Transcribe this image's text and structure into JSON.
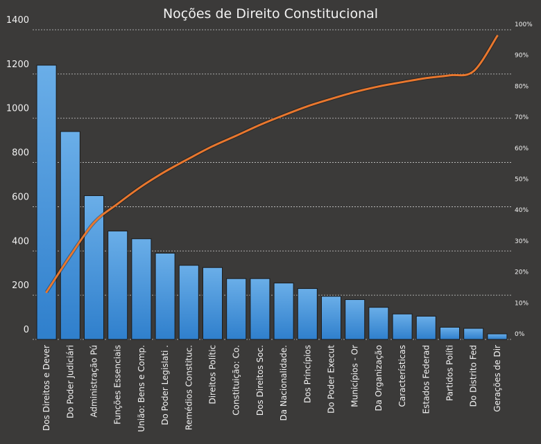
{
  "colors": {
    "background": "#3b3a39",
    "bar_fill_top": "#6aaee8",
    "bar_fill_bottom": "#2f7fcc",
    "bar_stroke": "#1b1b1b",
    "line": "#e8772e",
    "text": "#f2f2f2"
  },
  "chart_data": {
    "type": "bar",
    "title": "Noções de Direito Constitucional",
    "xlabel": "",
    "ylabel": "",
    "ylim": [
      0,
      1400
    ],
    "yticks": [
      "0",
      "200",
      "400",
      "600",
      "800",
      "1000",
      "1200",
      "1400"
    ],
    "y2lim": [
      0,
      100
    ],
    "y2ticks": [
      "0%",
      "10%",
      "20%",
      "30%",
      "40%",
      "50%",
      "60%",
      "70%",
      "80%",
      "90%",
      "100%"
    ],
    "grid": true,
    "categories": [
      "Dos Direitos e Dever",
      "Do Poder Judiciári",
      "Administração Pú",
      "Funções Essenciais",
      "União: Bens e Comp.",
      "Do Poder Legislati .",
      "Remédios Constituc.",
      "Direitos Polític",
      "Constituição: Co.",
      "Dos Direitos Soc.",
      "Da Nacionalidade.",
      "Dos Princípios",
      "Do Poder Execut",
      "Municípios - Or",
      "Da Organização",
      "Características",
      "Estados Federad",
      "Partidos Políti",
      "Do Distrito Fed",
      "Gerações de Dir"
    ],
    "series": [
      {
        "type": "bar",
        "axis": "left",
        "values": [
          1240,
          940,
          650,
          490,
          455,
          390,
          335,
          325,
          275,
          275,
          255,
          230,
          195,
          180,
          145,
          115,
          105,
          55,
          50,
          25
        ]
      },
      {
        "type": "line",
        "axis": "right",
        "values": [
          15.3,
          27.0,
          37.7,
          43.8,
          49.4,
          54.2,
          58.4,
          62.4,
          65.8,
          69.3,
          72.4,
          75.3,
          77.7,
          79.9,
          81.7,
          83.1,
          84.4,
          85.3,
          86.6,
          98.0
        ]
      }
    ]
  }
}
